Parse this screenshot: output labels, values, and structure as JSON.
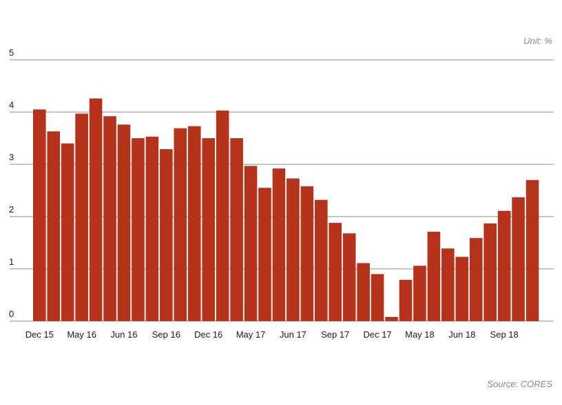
{
  "unit_label": "Unit: %",
  "source_label": "Source: CORES",
  "colors": {
    "bar": "#b5331b",
    "gridline": "#8c8c8c",
    "axis": "#8c8c8c"
  },
  "chart_data": {
    "type": "bar",
    "ylim": [
      0,
      5
    ],
    "yticks": [
      "0",
      "1",
      "2",
      "3",
      "4",
      "5"
    ],
    "grid": true,
    "xtick_labels": [
      {
        "index": 0,
        "label": "Dec 15"
      },
      {
        "index": 3,
        "label": "May 16"
      },
      {
        "index": 6,
        "label": "Jun 16"
      },
      {
        "index": 9,
        "label": "Sep 16"
      },
      {
        "index": 12,
        "label": "Dec 16"
      },
      {
        "index": 15,
        "label": "May 17"
      },
      {
        "index": 18,
        "label": "Jun 17"
      },
      {
        "index": 21,
        "label": "Sep 17"
      },
      {
        "index": 24,
        "label": "Dec 17"
      },
      {
        "index": 27,
        "label": "May 18"
      },
      {
        "index": 30,
        "label": "Jun 18"
      },
      {
        "index": 33,
        "label": "Sep 18"
      }
    ],
    "values": [
      4.05,
      3.63,
      3.4,
      3.97,
      4.26,
      3.92,
      3.76,
      3.5,
      3.53,
      3.29,
      3.69,
      3.73,
      3.5,
      4.03,
      3.5,
      2.97,
      2.55,
      2.92,
      2.73,
      2.58,
      2.32,
      1.88,
      1.68,
      1.11,
      0.9,
      0.08,
      0.79,
      1.06,
      1.71,
      1.39,
      1.23,
      1.59,
      1.87,
      2.11,
      2.37,
      2.7
    ]
  }
}
